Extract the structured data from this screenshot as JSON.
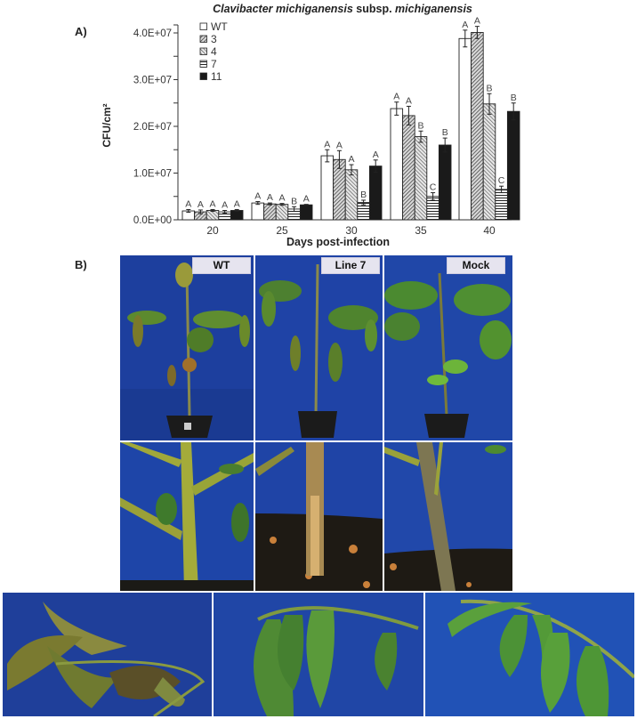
{
  "figure": {
    "panel_a_label": "A)",
    "panel_b_label": "B)"
  },
  "chart_data": {
    "type": "bar",
    "title": "Clavibacter michiganensis subsp. michiganensis",
    "title_italic_part": "Clavibacter michiganensis",
    "title_plain_part": " subsp. ",
    "title_italic_part2": "michiganensis",
    "xlabel": "Days post-infection",
    "ylabel": "CFU/cm²",
    "ylim": [
      0,
      45000000
    ],
    "yticks": [
      "0.0E+00",
      "1.0E+07",
      "2.0E+07",
      "3.0E+07",
      "4.0E+07"
    ],
    "ytick_values": [
      0,
      10000000,
      20000000,
      30000000,
      40000000
    ],
    "grid": false,
    "legend_position": "upper-left",
    "categories": [
      "20",
      "25",
      "30",
      "35",
      "40"
    ],
    "series": [
      {
        "name": "WT",
        "pattern": "white",
        "values": [
          1900000,
          3600000,
          13700000,
          23800000,
          38800000
        ],
        "errors": [
          300000,
          300000,
          1300000,
          1400000,
          1800000
        ],
        "letters": [
          "A",
          "A",
          "A",
          "A",
          "A"
        ]
      },
      {
        "name": "3",
        "pattern": "diagonal-dense",
        "values": [
          1700000,
          3400000,
          12900000,
          22300000,
          40100000
        ],
        "errors": [
          400000,
          200000,
          1900000,
          2000000,
          1300000
        ],
        "letters": [
          "A",
          "A",
          "A",
          "A",
          "A"
        ]
      },
      {
        "name": "4",
        "pattern": "diagonal-light",
        "values": [
          2000000,
          3300000,
          10700000,
          17800000,
          24800000
        ],
        "errors": [
          200000,
          200000,
          1100000,
          1200000,
          2200000
        ],
        "letters": [
          "A",
          "A",
          "A",
          "B",
          "B"
        ]
      },
      {
        "name": "7",
        "pattern": "horizontal",
        "values": [
          1700000,
          2300000,
          3700000,
          5000000,
          6500000
        ],
        "errors": [
          300000,
          500000,
          500000,
          800000,
          700000
        ],
        "letters": [
          "A",
          "B",
          "B",
          "C",
          "C"
        ]
      },
      {
        "name": "11",
        "pattern": "black",
        "values": [
          2000000,
          3200000,
          11500000,
          16000000,
          23200000
        ],
        "errors": [
          200000,
          100000,
          1300000,
          1500000,
          1800000
        ],
        "letters": [
          "A",
          "A",
          "A",
          "B",
          "B"
        ]
      }
    ]
  },
  "photos": {
    "columns": [
      "WT",
      "Line 7",
      "Mock"
    ],
    "rows": [
      "whole-plant",
      "stem-close-up",
      "leaf-close-up"
    ],
    "labels": {
      "wt": "WT",
      "line7": "Line 7",
      "mock": "Mock"
    }
  }
}
